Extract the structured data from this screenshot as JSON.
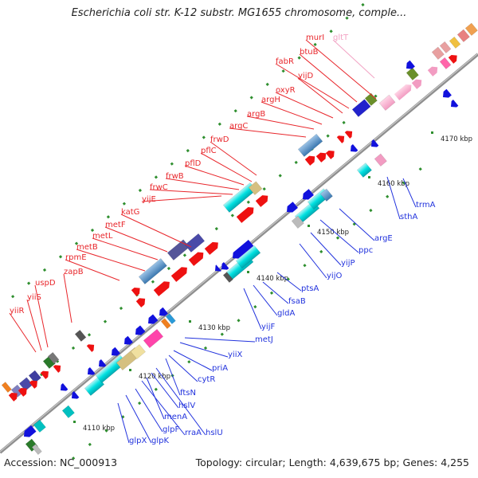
{
  "title": "Escherichia coli str. K-12 substr. MG1655 chromosome, comple...",
  "footer": {
    "accession": "Accession: NC_000913",
    "info": "Topology: circular; Length: 4,639,675 bp; Genes: 4,255"
  },
  "ticks": [
    "4110 kbp",
    "4120 kbp",
    "4130 kbp",
    "4140 kbp",
    "4150 kbp",
    "4160 kbp",
    "4170 kbp"
  ],
  "genes_upper": [
    "yiiR",
    "yiiS",
    "uspD",
    "zapB",
    "rpmE",
    "metB",
    "metL",
    "metF",
    "katG",
    "yijE",
    "frwC",
    "frwB",
    "pflD",
    "pflC",
    "frwD",
    "argC",
    "argB",
    "argH",
    "oxyR",
    "yijD",
    "fabR",
    "btuB",
    "murI",
    "gltT"
  ],
  "genes_lower": [
    "glpX",
    "glpK",
    "glpF",
    "rraA",
    "menA",
    "hslU",
    "hslV",
    "ftsN",
    "cytR",
    "priA",
    "yiiX",
    "metJ",
    "yijF",
    "gldA",
    "fsaB",
    "ptsA",
    "yijO",
    "yijP",
    "ppc",
    "argE",
    "sthA",
    "trmA"
  ],
  "colors": {
    "label_upper": "#e8262b",
    "label_upper_faded": "#f2a3c4",
    "label_lower": "#2233dd",
    "backbone": "#8f8f8f",
    "tick": "#2f8f2f"
  }
}
